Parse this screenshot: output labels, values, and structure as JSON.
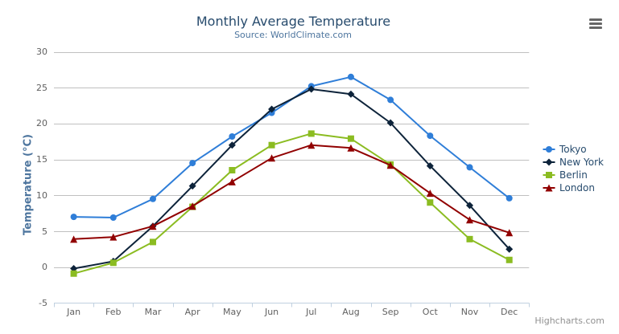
{
  "chart_data": {
    "type": "line",
    "title": "Monthly Average Temperature",
    "subtitle": "Source: WorldClimate.com",
    "xlabel": "",
    "ylabel": "Temperature (°C)",
    "categories": [
      "Jan",
      "Feb",
      "Mar",
      "Apr",
      "May",
      "Jun",
      "Jul",
      "Aug",
      "Sep",
      "Oct",
      "Nov",
      "Dec"
    ],
    "series": [
      {
        "name": "Tokyo",
        "color": "#2f7ed8",
        "marker": "circle",
        "values": [
          7.0,
          6.9,
          9.5,
          14.5,
          18.2,
          21.5,
          25.2,
          26.5,
          23.3,
          18.3,
          13.9,
          9.6
        ]
      },
      {
        "name": "New York",
        "color": "#0d233a",
        "marker": "diamond",
        "values": [
          -0.2,
          0.8,
          5.7,
          11.3,
          17.0,
          22.0,
          24.8,
          24.1,
          20.1,
          14.1,
          8.6,
          2.5
        ]
      },
      {
        "name": "Berlin",
        "color": "#8bbc21",
        "marker": "square",
        "values": [
          -0.9,
          0.6,
          3.5,
          8.4,
          13.5,
          17.0,
          18.6,
          17.9,
          14.3,
          9.0,
          3.9,
          1.0
        ]
      },
      {
        "name": "London",
        "color": "#910000",
        "marker": "triangle",
        "values": [
          3.9,
          4.2,
          5.7,
          8.5,
          11.9,
          15.2,
          17.0,
          16.6,
          14.2,
          10.3,
          6.6,
          4.8
        ]
      }
    ],
    "ylim": [
      -5,
      30
    ],
    "ytick_step": 5,
    "yticks": [
      -5,
      0,
      5,
      10,
      15,
      20,
      25,
      30
    ],
    "grid": "horizontal",
    "legend_position": "right",
    "grid_color": "#c0c0c0",
    "axis_line_color": "#c0d0e0"
  },
  "credits": {
    "label": "Highcharts.com"
  },
  "context_menu": {
    "icon": "hamburger-icon"
  }
}
